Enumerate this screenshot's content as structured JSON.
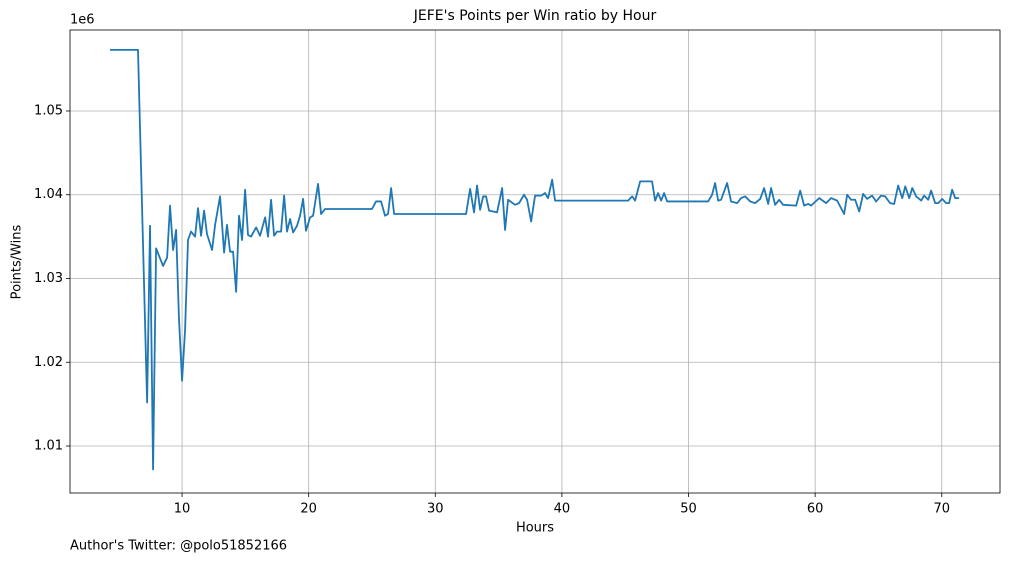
{
  "chart_data": {
    "type": "line",
    "title": "JEFE's Points per Win ratio by Hour",
    "xlabel": "Hours",
    "ylabel": "Points/Wins",
    "y_offset_label": "1e6",
    "footnote": "Author's Twitter: @polo51852166",
    "color": "#1f77b4",
    "grid": true,
    "xlim": [
      1.15,
      74.6
    ],
    "ylim": [
      1004390,
      1059670
    ],
    "xticks": [
      10,
      20,
      30,
      40,
      50,
      60,
      70
    ],
    "yticks": [
      {
        "value": 1010000,
        "label": "1.01"
      },
      {
        "value": 1020000,
        "label": "1.02"
      },
      {
        "value": 1030000,
        "label": "1.03"
      },
      {
        "value": 1040000,
        "label": "1.04"
      },
      {
        "value": 1050000,
        "label": "1.05"
      }
    ],
    "x": [
      4.31,
      6.52,
      7.24,
      7.47,
      7.71,
      7.95,
      8.5,
      8.82,
      9.05,
      9.29,
      9.53,
      9.76,
      10.0,
      10.24,
      10.47,
      10.71,
      11.03,
      11.26,
      11.5,
      11.74,
      11.97,
      12.37,
      12.61,
      13.0,
      13.32,
      13.55,
      13.79,
      14.03,
      14.27,
      14.5,
      14.74,
      14.98,
      15.21,
      15.45,
      15.85,
      16.16,
      16.56,
      16.79,
      17.03,
      17.27,
      17.5,
      17.82,
      18.06,
      18.29,
      18.53,
      18.77,
      19.08,
      19.32,
      19.56,
      19.79,
      20.11,
      20.35,
      20.74,
      20.98,
      21.3,
      25.0,
      25.32,
      25.72,
      26.03,
      26.27,
      26.51,
      26.75,
      32.43,
      32.75,
      33.06,
      33.3,
      33.54,
      33.78,
      34.01,
      34.25,
      34.88,
      35.28,
      35.51,
      35.75,
      36.3,
      36.62,
      37.01,
      37.25,
      37.57,
      37.88,
      38.36,
      38.67,
      38.91,
      39.23,
      39.46,
      45.23,
      45.55,
      45.78,
      46.18,
      47.12,
      47.36,
      47.6,
      47.84,
      48.07,
      48.31,
      51.55,
      51.86,
      52.1,
      52.34,
      52.57,
      53.05,
      53.36,
      53.84,
      54.15,
      54.47,
      54.87,
      55.26,
      55.66,
      55.97,
      56.29,
      56.52,
      56.84,
      57.16,
      57.47,
      58.5,
      58.82,
      59.13,
      59.45,
      59.68,
      60.32,
      60.87,
      61.26,
      61.74,
      62.29,
      62.53,
      62.84,
      63.16,
      63.48,
      63.79,
      64.11,
      64.5,
      64.82,
      65.21,
      65.53,
      65.92,
      66.24,
      66.56,
      66.88,
      67.12,
      67.43,
      67.67,
      67.98,
      68.38,
      68.61,
      68.93,
      69.16,
      69.48,
      69.72,
      70.03,
      70.35,
      70.58,
      70.82,
      71.06,
      71.37
    ],
    "values": [
      1057300,
      1057300,
      1015200,
      1036300,
      1007200,
      1033600,
      1031500,
      1032500,
      1038700,
      1033400,
      1035800,
      1025100,
      1017800,
      1023900,
      1034600,
      1035600,
      1035000,
      1038400,
      1035100,
      1038100,
      1035300,
      1033400,
      1036400,
      1039800,
      1033100,
      1036400,
      1033200,
      1033200,
      1028400,
      1037500,
      1034600,
      1040600,
      1035200,
      1035000,
      1036100,
      1035100,
      1037300,
      1035000,
      1039400,
      1035100,
      1035600,
      1035600,
      1039900,
      1035600,
      1037100,
      1035500,
      1036300,
      1037500,
      1039500,
      1035700,
      1037300,
      1037500,
      1041300,
      1037700,
      1038300,
      1038300,
      1039200,
      1039200,
      1037500,
      1037700,
      1040800,
      1037700,
      1037700,
      1040700,
      1037900,
      1041100,
      1038200,
      1039800,
      1039800,
      1038100,
      1037900,
      1040800,
      1035800,
      1039400,
      1038800,
      1039000,
      1040000,
      1039400,
      1036800,
      1039900,
      1039900,
      1040200,
      1039600,
      1041800,
      1039300,
      1039300,
      1039800,
      1039300,
      1041600,
      1041600,
      1039300,
      1040200,
      1039300,
      1040200,
      1039200,
      1039200,
      1040000,
      1041400,
      1039300,
      1039400,
      1041400,
      1039200,
      1039000,
      1039600,
      1039800,
      1039200,
      1039000,
      1039500,
      1040800,
      1038900,
      1040800,
      1038800,
      1039400,
      1038800,
      1038700,
      1040500,
      1038700,
      1038900,
      1038700,
      1039600,
      1039000,
      1039600,
      1039300,
      1037700,
      1040000,
      1039400,
      1039400,
      1038000,
      1040100,
      1039500,
      1039900,
      1039200,
      1039900,
      1039800,
      1039000,
      1038900,
      1041100,
      1039600,
      1041000,
      1039600,
      1040800,
      1039800,
      1039300,
      1039900,
      1039400,
      1040500,
      1039000,
      1039000,
      1039500,
      1039000,
      1039000,
      1040600,
      1039600,
      1039600
    ]
  }
}
